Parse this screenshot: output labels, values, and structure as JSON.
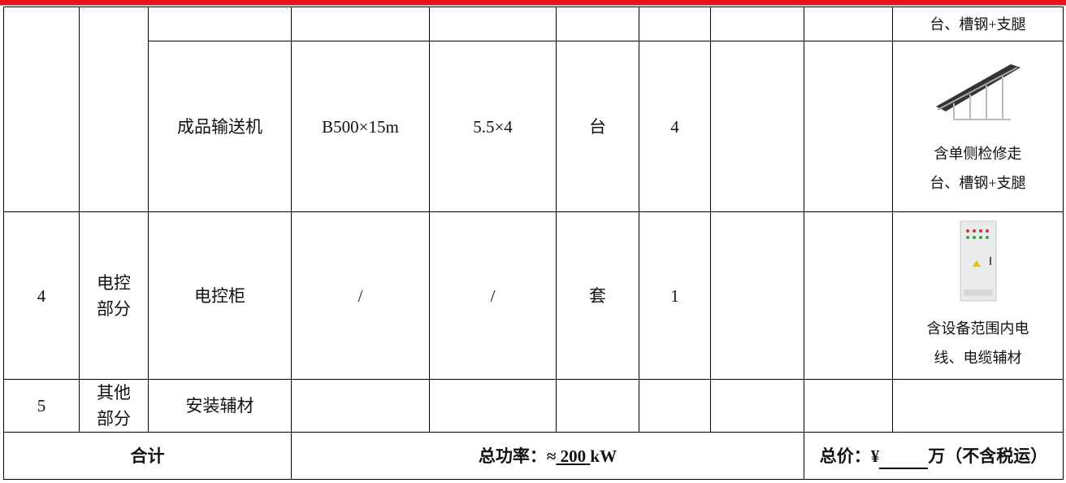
{
  "table": {
    "rows": [
      {
        "remark_lines": [
          "台、槽钢+支腿"
        ]
      },
      {
        "name": "成品输送机",
        "spec": "B500×15m",
        "power": "5.5×4",
        "unit": "台",
        "qty": "4",
        "remark_lines": [
          "含单侧检修走",
          "台、槽钢+支腿"
        ]
      },
      {
        "no": "4",
        "category_lines": [
          "电控",
          "部分"
        ],
        "name": "电控柜",
        "spec": "/",
        "power": "/",
        "unit": "套",
        "qty": "1",
        "remark_lines": [
          "含设备范围内电",
          "线、电缆辅材"
        ]
      },
      {
        "no": "5",
        "category_lines": [
          "其他",
          "部分"
        ],
        "name": "安装辅材"
      }
    ],
    "total": {
      "label": "合计",
      "power_prefix": "总功率：≈",
      "power_value": "200",
      "power_unit": "kW",
      "price_prefix": "总价：¥",
      "price_suffix": "万（不含税运）"
    }
  }
}
